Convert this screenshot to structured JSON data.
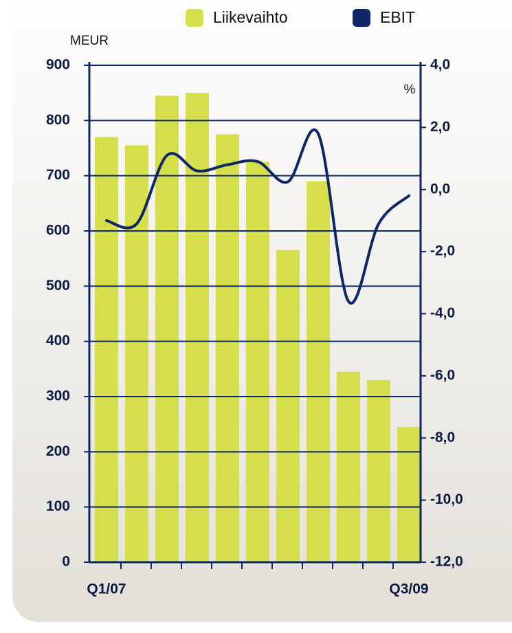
{
  "chart_data": {
    "type": "bar-line",
    "y_label": "MEUR",
    "y2_label": "%",
    "categories": [
      "Q1/07",
      null,
      null,
      null,
      null,
      null,
      null,
      null,
      null,
      null,
      "Q3/09"
    ],
    "series": [
      {
        "name": "Liikevaihto",
        "type": "bar",
        "color": "#d5df4c",
        "values": [
          770,
          755,
          845,
          850,
          775,
          725,
          565,
          690,
          345,
          330,
          245
        ]
      },
      {
        "name": "EBIT",
        "type": "line",
        "axis": "y2",
        "color": "#0d2766",
        "values": [
          -1.0,
          -1.1,
          1.1,
          0.6,
          0.8,
          0.9,
          0.25,
          1.8,
          -3.6,
          -1.1,
          -0.2
        ]
      }
    ],
    "ylim": [
      0,
      900
    ],
    "yticks": [
      0,
      100,
      200,
      300,
      400,
      500,
      600,
      700,
      800,
      900
    ],
    "y2lim": [
      -12,
      4
    ],
    "y2ticks": [
      {
        "value": -12,
        "label": "-12,0"
      },
      {
        "value": -10,
        "label": "-10,0"
      },
      {
        "value": -8,
        "label": "-8,0"
      },
      {
        "value": -6,
        "label": "-6,0"
      },
      {
        "value": -4,
        "label": "-4,0"
      },
      {
        "value": -2,
        "label": "-2,0"
      },
      {
        "value": 0,
        "label": "0,0"
      },
      {
        "value": 2,
        "label": "2,0"
      },
      {
        "value": 4,
        "label": "4,0"
      }
    ],
    "grid": true,
    "legend": "top-right"
  }
}
